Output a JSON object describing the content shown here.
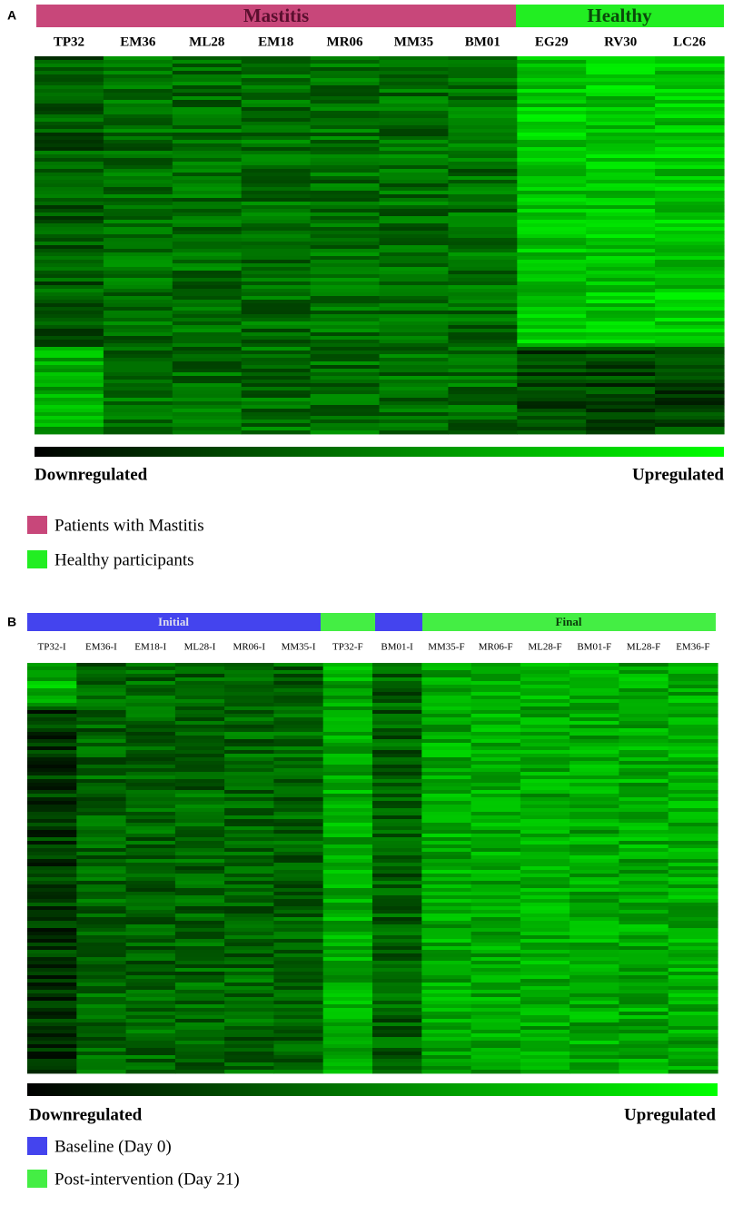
{
  "panel_a": {
    "label": "A",
    "groups": [
      "Mastitis",
      "Healthy"
    ],
    "columns": [
      "TP32",
      "EM36",
      "ML28",
      "EM18",
      "MR06",
      "MM35",
      "BM01",
      "EG29",
      "RV30",
      "LC26"
    ],
    "scale": {
      "low": "Downregulated",
      "high": "Upregulated"
    },
    "legend": [
      "Patients with Mastitis",
      "Healthy participants"
    ]
  },
  "panel_b": {
    "label": "B",
    "groups": [
      "Initial",
      "Final"
    ],
    "columns": [
      "TP32-I",
      "EM36-I",
      "EM18-I",
      "ML28-I",
      "MR06-I",
      "MM35-I",
      "TP32-F",
      "BM01-I",
      "MM35-F",
      "MR06-F",
      "ML28-F",
      "BM01-F",
      "ML28-F",
      "EM36-F"
    ],
    "scale": {
      "low": "Downregulated",
      "high": "Upregulated"
    },
    "legend": [
      "Baseline (Day 0)",
      "Post-intervention (Day 21)"
    ]
  }
}
